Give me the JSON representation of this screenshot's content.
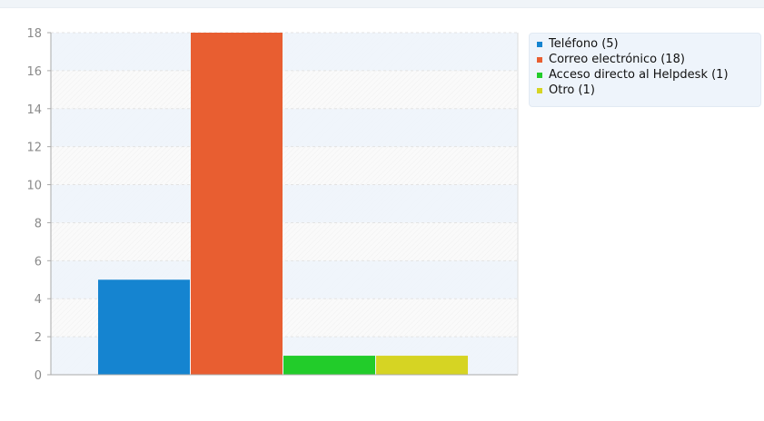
{
  "chart_data": {
    "type": "bar",
    "title": "",
    "xlabel": "",
    "ylabel": "",
    "ylim": [
      0,
      18
    ],
    "yticks": [
      0,
      2,
      4,
      6,
      8,
      10,
      12,
      14,
      16,
      18
    ],
    "grid": true,
    "legend_position": "top-right",
    "series": [
      {
        "name": "Teléfono",
        "value": 5,
        "color": "#1584d0",
        "legend_label": "Teléfono (5)"
      },
      {
        "name": "Correo electrónico",
        "value": 18,
        "color": "#e85e31",
        "legend_label": "Correo electrónico (18)"
      },
      {
        "name": "Acceso directo al Helpdesk",
        "value": 1,
        "color": "#22cc2a",
        "legend_label": "Acceso directo al Helpdesk (1)"
      },
      {
        "name": "Otro",
        "value": 1,
        "color": "#d6d423",
        "legend_label": "Otro (1)"
      }
    ]
  }
}
